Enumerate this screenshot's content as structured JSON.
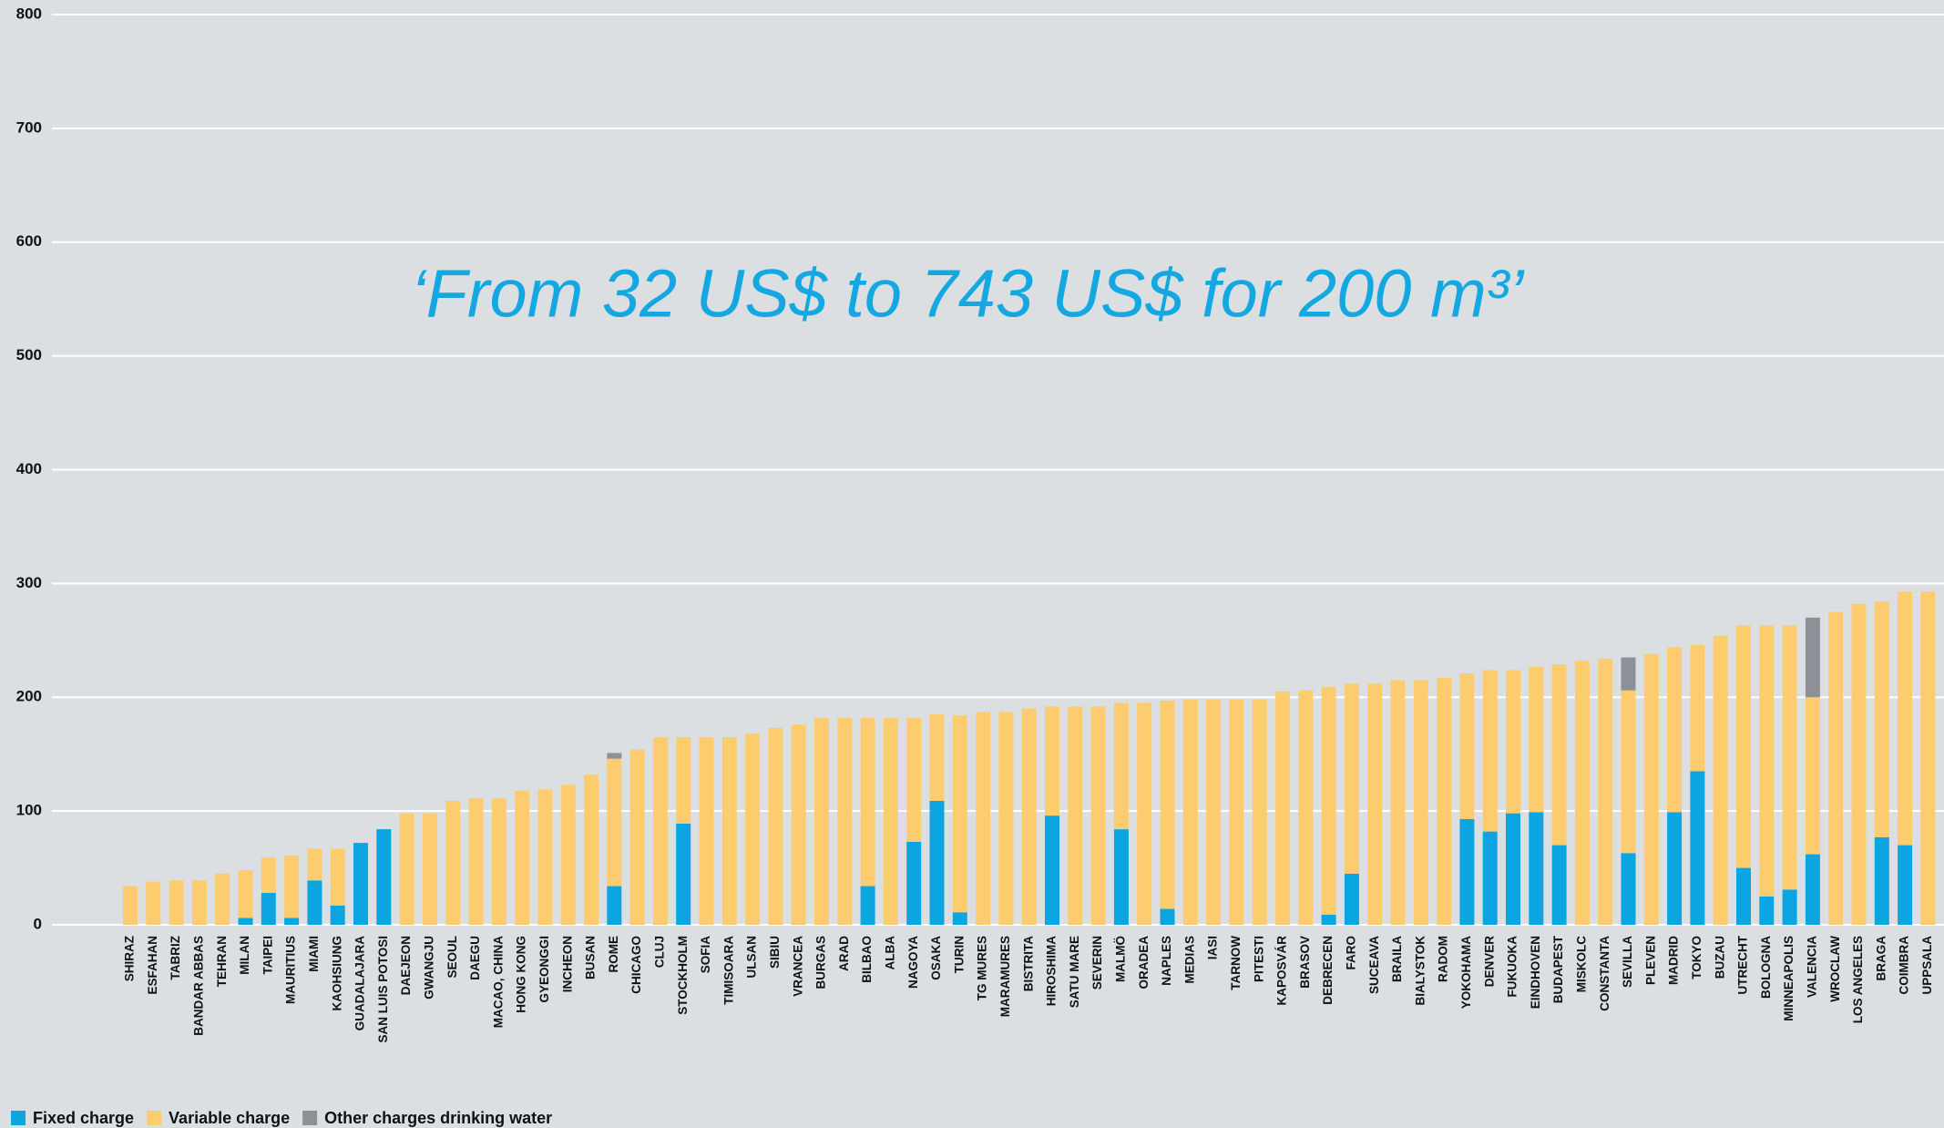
{
  "chart_data": {
    "type": "stacked_bar",
    "annotation": "‘From 32 US$ to 743 US$ for 200 m³’",
    "categories": [
      "SHIRAZ",
      "ESFAHAN",
      "TABRIZ",
      "BANDAR ABBAS",
      "TEHRAN",
      "MILAN",
      "TAIPEI",
      "MAURITIUS",
      "MIAMI",
      "KAOHSIUNG",
      "GUADALAJARA",
      "SAN LUIS POTOSI",
      "DAEJEON",
      "GWANGJU",
      "SEOUL",
      "DAEGU",
      "MACAO, CHINA",
      "HONG KONG",
      "GYEONGGI",
      "INCHEON",
      "BUSAN",
      "ROME",
      "CHICAGO",
      "CLUJ",
      "STOCKHOLM",
      "SOFIA",
      "TIMISOARA",
      "ULSAN",
      "SIBIU",
      "VRANCEA",
      "BURGAS",
      "ARAD",
      "BILBAO",
      "ALBA",
      "NAGOYA",
      "OSAKA",
      "TURIN",
      "TG MURES",
      "MARAMURES",
      "BISTRITA",
      "HIROSHIMA",
      "SATU MARE",
      "SEVERIN",
      "MALMÖ",
      "ORADEA",
      "NAPLES",
      "MEDIAS",
      "IASI",
      "TARNOW",
      "PITESTI",
      "KAPOSVÁR",
      "BRASOV",
      "DEBRECEN",
      "FARO",
      "SUCEAVA",
      "BRAILA",
      "BIALYSTOK",
      "RADOM",
      "YOKOHAMA",
      "DENVER",
      "FUKUOKA",
      "EINDHOVEN",
      "BUDAPEST",
      "MISKOLC",
      "CONSTANTA",
      "SEVILLA",
      "PLEVEN",
      "MADRID",
      "TOKYO",
      "BUZAU",
      "UTRECHT",
      "BOLOGNA",
      "MINNEAPOLIS",
      "VALENCIA",
      "WROCLAW",
      "LOS ANGELES",
      "BRAGA",
      "COIMBRA",
      "UPPSALA"
    ],
    "series": [
      {
        "name": "Fixed charge",
        "color": "#0ba6e2",
        "values": [
          0,
          0,
          0,
          0,
          0,
          6,
          28,
          6,
          39,
          17,
          72,
          84,
          0,
          0,
          0,
          0,
          0,
          0,
          0,
          0,
          0,
          34,
          0,
          0,
          89,
          0,
          0,
          0,
          0,
          0,
          0,
          0,
          34,
          0,
          73,
          109,
          11,
          0,
          0,
          0,
          96,
          0,
          0,
          84,
          0,
          14,
          0,
          0,
          0,
          0,
          0,
          0,
          9,
          45,
          0,
          0,
          0,
          0,
          93,
          82,
          98,
          99,
          70,
          0,
          0,
          63,
          0,
          99,
          135,
          0,
          50,
          25,
          31,
          62,
          0,
          0,
          77,
          70,
          0
        ]
      },
      {
        "name": "Variable charge",
        "color": "#fdcc6f",
        "values": [
          34,
          38,
          39,
          39,
          45,
          42,
          31,
          55,
          28,
          50,
          0,
          0,
          98,
          98,
          109,
          111,
          111,
          118,
          119,
          123,
          132,
          112,
          154,
          165,
          76,
          165,
          165,
          168,
          173,
          176,
          182,
          182,
          148,
          182,
          109,
          76,
          173,
          187,
          187,
          190,
          96,
          192,
          192,
          111,
          195,
          183,
          198,
          198,
          198,
          198,
          205,
          206,
          200,
          167,
          212,
          215,
          215,
          217,
          128,
          142,
          126,
          128,
          159,
          232,
          234,
          143,
          238,
          145,
          111,
          254,
          213,
          238,
          232,
          138,
          275,
          282,
          207,
          223,
          293
        ]
      },
      {
        "name": "Other charges drinking water",
        "color": "#8b9196",
        "values": [
          0,
          0,
          0,
          0,
          0,
          0,
          0,
          0,
          0,
          0,
          0,
          0,
          0,
          0,
          0,
          0,
          0,
          0,
          0,
          0,
          0,
          5,
          0,
          0,
          0,
          0,
          0,
          0,
          0,
          0,
          0,
          0,
          0,
          0,
          0,
          0,
          0,
          0,
          0,
          0,
          0,
          0,
          0,
          0,
          0,
          0,
          0,
          0,
          0,
          0,
          0,
          0,
          0,
          0,
          0,
          0,
          0,
          0,
          0,
          0,
          0,
          0,
          0,
          0,
          0,
          29,
          0,
          0,
          0,
          0,
          0,
          0,
          0,
          70,
          0,
          0,
          0,
          0,
          0
        ]
      }
    ],
    "ylim": [
      0,
      800
    ],
    "yticks": [
      0,
      100,
      200,
      300,
      400,
      500,
      600,
      700,
      800
    ],
    "grid": true,
    "legend": "bottom-left"
  }
}
